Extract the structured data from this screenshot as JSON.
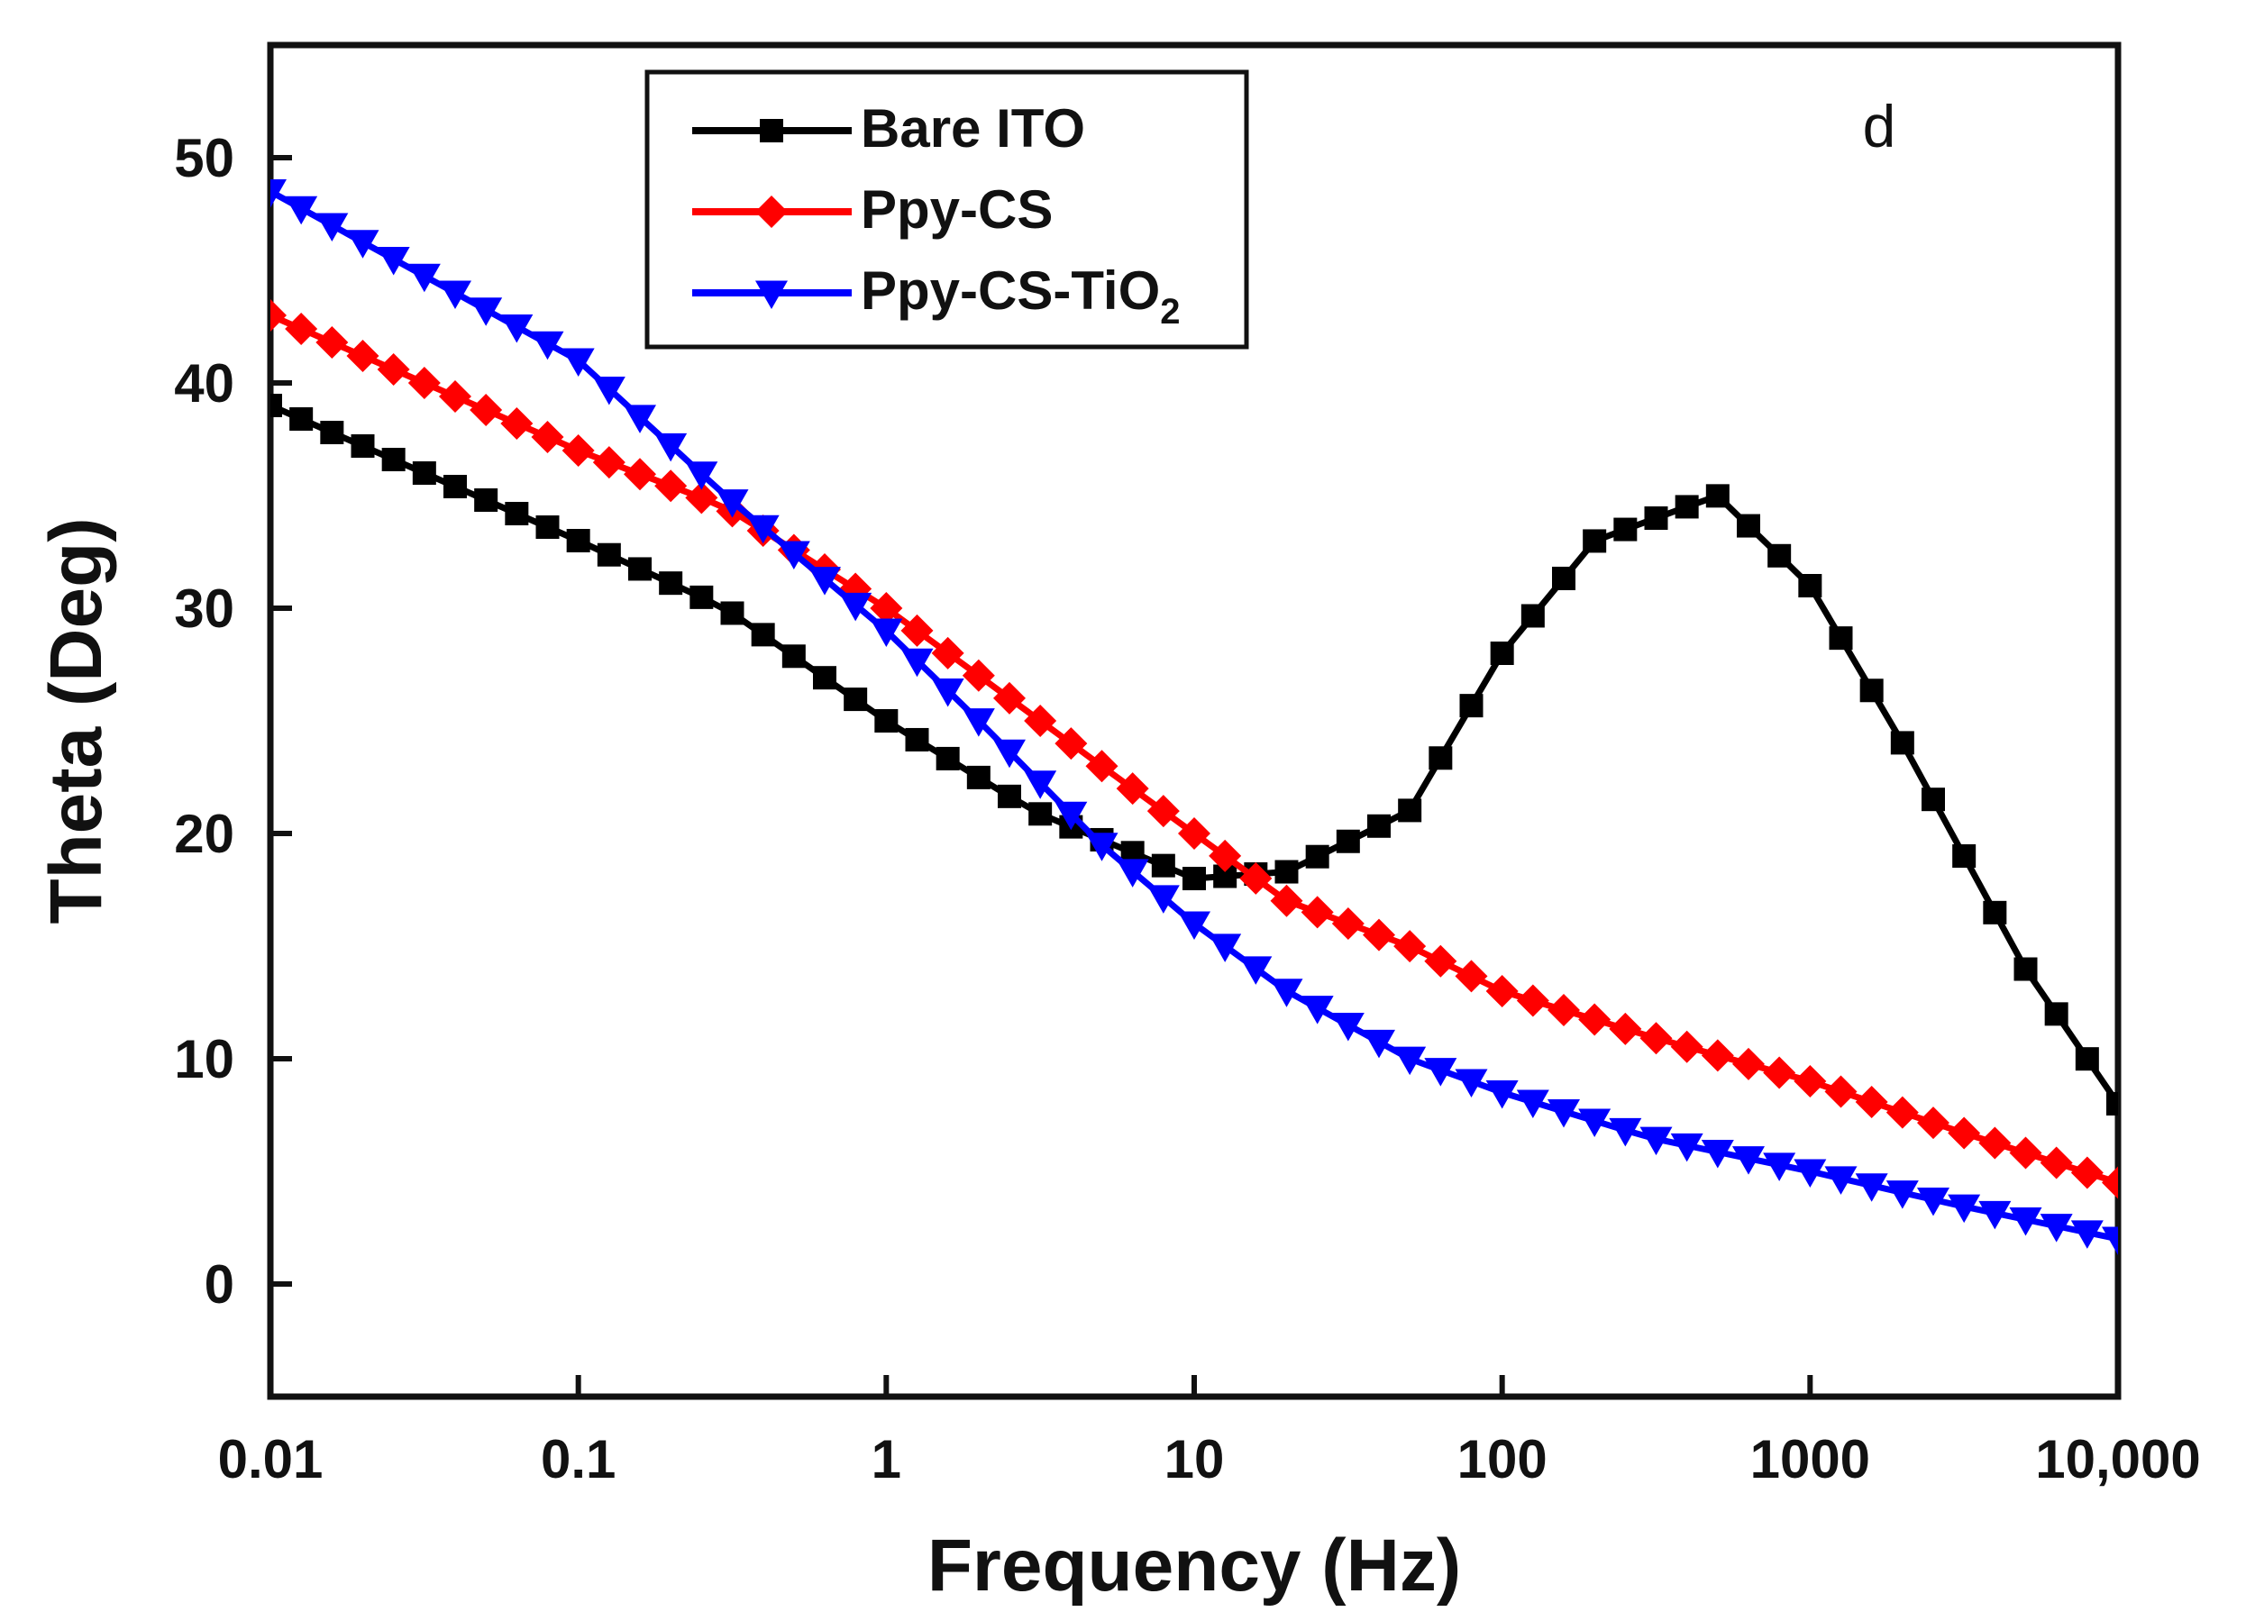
{
  "chart_data": {
    "type": "line",
    "panel_label": "d",
    "xlabel": "Frequency (Hz)",
    "ylabel": "Theta (Deg)",
    "xscale": "log",
    "xlim": [
      0.01,
      10000
    ],
    "ylim": [
      -5,
      55
    ],
    "x_ticks": [
      0.01,
      0.1,
      1,
      10,
      100,
      1000,
      10000
    ],
    "x_tick_labels": [
      "0.01",
      "0.1",
      "1",
      "10",
      "100",
      "1000",
      "10,000"
    ],
    "y_ticks": [
      0,
      10,
      20,
      30,
      40,
      50
    ],
    "y_tick_labels": [
      "0",
      "10",
      "20",
      "30",
      "40",
      "50"
    ],
    "legend": {
      "position": "top-left",
      "entries": [
        "Bare ITO",
        "Ppy-CS",
        "Ppy-CS-TiO2"
      ]
    },
    "series": [
      {
        "name": "Bare ITO",
        "color": "#000000",
        "marker": "square",
        "x": [
          0.01,
          0.1,
          0.3,
          1,
          3,
          10,
          20,
          50,
          100,
          200,
          500,
          1000,
          2000,
          5000,
          10000
        ],
        "y": [
          39,
          33,
          30,
          25,
          21,
          18,
          18.3,
          21,
          28,
          33,
          35,
          31,
          24,
          14,
          8
        ]
      },
      {
        "name": "Ppy-CS",
        "color": "#ff0000",
        "marker": "diamond",
        "x": [
          0.01,
          0.1,
          0.3,
          1,
          2,
          5,
          10,
          20,
          50,
          100,
          300,
          1000,
          3000,
          10000
        ],
        "y": [
          43,
          37,
          34.5,
          30,
          27,
          23,
          20,
          17,
          15,
          13,
          11,
          9,
          6.8,
          4.5
        ]
      },
      {
        "name": "Ppy-CS-TiO2",
        "color": "#0000ff",
        "marker": "triangle-down",
        "x": [
          0.01,
          0.1,
          0.3,
          1,
          2,
          5,
          10,
          20,
          50,
          100,
          300,
          1000,
          3000,
          10000
        ],
        "y": [
          48.5,
          41,
          35,
          29,
          25,
          19.5,
          16,
          13,
          10,
          8.5,
          6.5,
          5,
          3.5,
          2
        ]
      }
    ]
  }
}
